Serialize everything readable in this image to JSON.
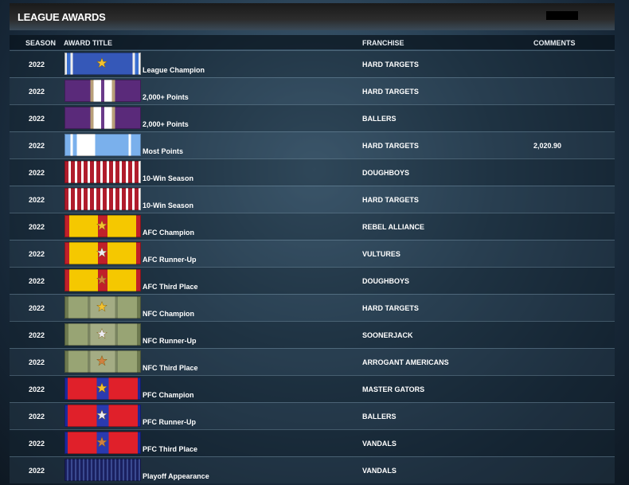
{
  "header": {
    "title": "LEAGUE AWARDS"
  },
  "table": {
    "columns": [
      "SEASON",
      "AWARD TITLE",
      "FRANCHISE",
      "COMMENTS"
    ],
    "rows": [
      {
        "season": "2022",
        "award": "League Champion",
        "franchise": "HARD TARGETS"
      },
      {
        "season": "2022",
        "award": "2,000+ Points",
        "franchise": "HARD TARGETS"
      },
      {
        "season": "2022",
        "award": "2,000+ Points",
        "franchise": "BALLERS"
      },
      {
        "season": "2022",
        "award": "Most Points",
        "franchise": "HARD TARGETS",
        "comment": "2,020.90"
      },
      {
        "season": "2022",
        "award": "10-Win Season",
        "franchise": "DOUGHBOYS"
      },
      {
        "season": "2022",
        "award": "10-Win Season",
        "franchise": "HARD TARGETS"
      },
      {
        "season": "2022",
        "award": "AFC Champion",
        "franchise": "REBEL ALLIANCE"
      },
      {
        "season": "2022",
        "award": "AFC Runner-Up",
        "franchise": "VULTURES"
      },
      {
        "season": "2022",
        "award": "AFC Third Place",
        "franchise": "DOUGHBOYS"
      },
      {
        "season": "2022",
        "award": "NFC Champion",
        "franchise": "HARD TARGETS"
      },
      {
        "season": "2022",
        "award": "NFC Runner-Up",
        "franchise": "SOONERJACK"
      },
      {
        "season": "2022",
        "award": "NFC Third Place",
        "franchise": "ARROGANT AMERICANS"
      },
      {
        "season": "2022",
        "award": "PFC Champion",
        "franchise": "MASTER GATORS"
      },
      {
        "season": "2022",
        "award": "PFC Runner-Up",
        "franchise": "BALLERS"
      },
      {
        "season": "2022",
        "award": "PFC Third Place",
        "franchise": "VANDALS"
      },
      {
        "season": "2022",
        "award": "Playoff Appearance",
        "franchise": "VANDALS"
      }
    ]
  }
}
